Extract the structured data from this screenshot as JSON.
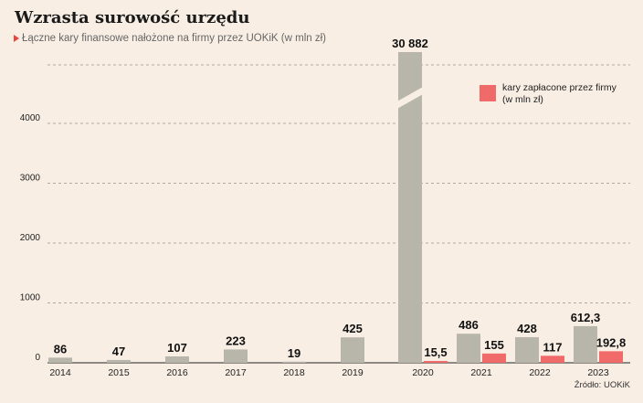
{
  "title": "Wzrasta surowość urzędu",
  "subtitle": "Łączne kary finansowe nałożone na firmy przez UOKiK (w mln zł)",
  "source": "Źródło: UOKiK",
  "colors": {
    "total": "#b8b6ab",
    "paid": "#f06a6a",
    "background": "#f8eee4",
    "accent": "#e8453c"
  },
  "chart_data": {
    "type": "bar",
    "categories": [
      "2014",
      "2015",
      "2016",
      "2017",
      "2018",
      "2019",
      "2020",
      "2021",
      "2022",
      "2023"
    ],
    "series": [
      {
        "name": "",
        "values": [
          86,
          47,
          107,
          223,
          19,
          425,
          30882,
          486,
          428,
          612.3
        ],
        "labels": [
          "86",
          "47",
          "107",
          "223",
          "19",
          "425",
          "30 882",
          "486",
          "428",
          "612,3"
        ]
      },
      {
        "name": "kary zapłacone przez firmy (w mln zł)",
        "legend_lines": [
          "kary zapłacone przez firmy",
          "(w mln zł)"
        ],
        "values": [
          null,
          null,
          null,
          null,
          null,
          null,
          15.5,
          155,
          117,
          192.8
        ],
        "labels": [
          "",
          "",
          "",
          "",
          "",
          "",
          "15,5",
          "155",
          "117",
          "192,8"
        ]
      }
    ],
    "yticks": [
      0,
      1000,
      2000,
      3000,
      4000
    ],
    "ylim": [
      0,
      5000
    ],
    "axis_break": true,
    "grid": true,
    "legend_position": "top-right"
  }
}
